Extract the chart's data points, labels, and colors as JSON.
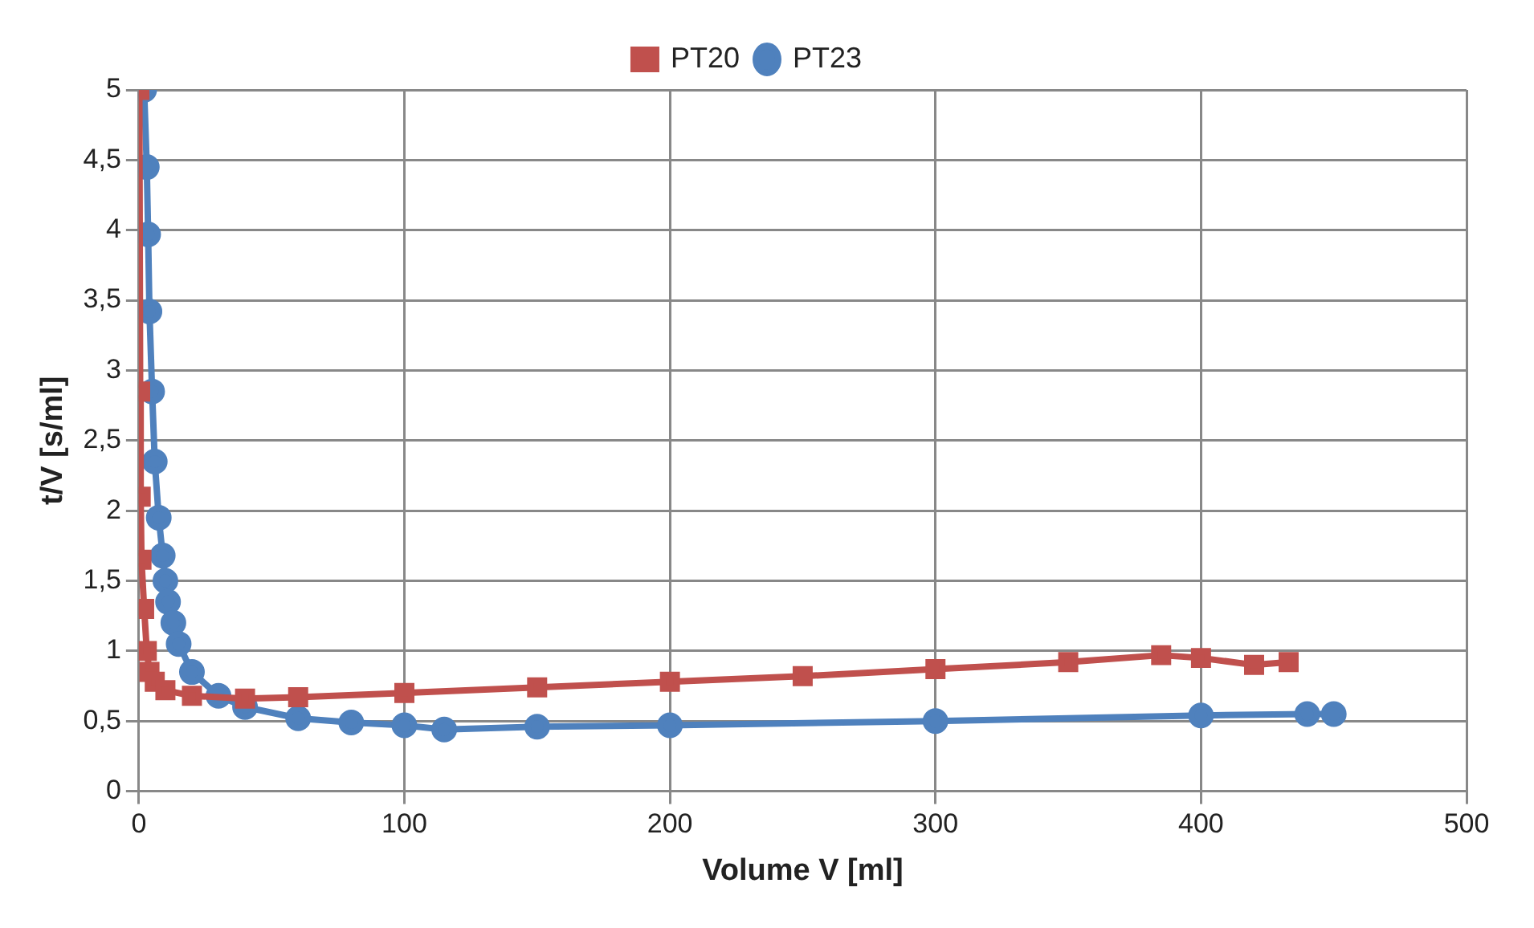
{
  "chart_data": {
    "type": "line",
    "xlabel": "Volume V [ml]",
    "ylabel": "t/V [s/ml]",
    "xlim": [
      0,
      500
    ],
    "xticks": [
      0,
      100,
      200,
      300,
      400,
      500
    ],
    "ylim": [
      0,
      5
    ],
    "yticks": [
      0,
      {
        "value": 0.5,
        "label": "0,5"
      },
      1,
      {
        "value": 1.5,
        "label": "1,5"
      },
      2,
      {
        "value": 2.5,
        "label": "2,5"
      },
      3,
      {
        "value": 3.5,
        "label": "3,5"
      },
      4,
      {
        "value": 4.5,
        "label": "4,5"
      },
      5
    ],
    "grid": true,
    "legend": "top",
    "series": [
      {
        "name": "PT20",
        "color": "#c0504d",
        "marker": "square",
        "x": [
          0.2,
          0.5,
          0.7,
          1,
          2,
          3,
          4,
          6,
          10,
          20,
          40,
          60,
          100,
          150,
          200,
          250,
          300,
          350,
          385,
          400,
          420,
          433
        ],
        "values": [
          5,
          2.85,
          2.1,
          1.65,
          1.3,
          1.0,
          0.85,
          0.78,
          0.72,
          0.68,
          0.66,
          0.67,
          0.7,
          0.74,
          0.78,
          0.82,
          0.87,
          0.92,
          0.97,
          0.95,
          0.9,
          0.92
        ]
      },
      {
        "name": "PT23",
        "color": "#4f81bd",
        "marker": "circle",
        "x": [
          2,
          3,
          3.5,
          4,
          5,
          6,
          7.5,
          9,
          10,
          11,
          13,
          15,
          20,
          30,
          40,
          60,
          80,
          100,
          115,
          150,
          200,
          300,
          400,
          440,
          450
        ],
        "values": [
          5,
          4.45,
          3.97,
          3.42,
          2.85,
          2.35,
          1.95,
          1.68,
          1.5,
          1.35,
          1.2,
          1.05,
          0.85,
          0.68,
          0.6,
          0.52,
          0.49,
          0.47,
          0.44,
          0.46,
          0.47,
          0.5,
          0.54,
          0.55,
          0.55
        ]
      }
    ]
  }
}
